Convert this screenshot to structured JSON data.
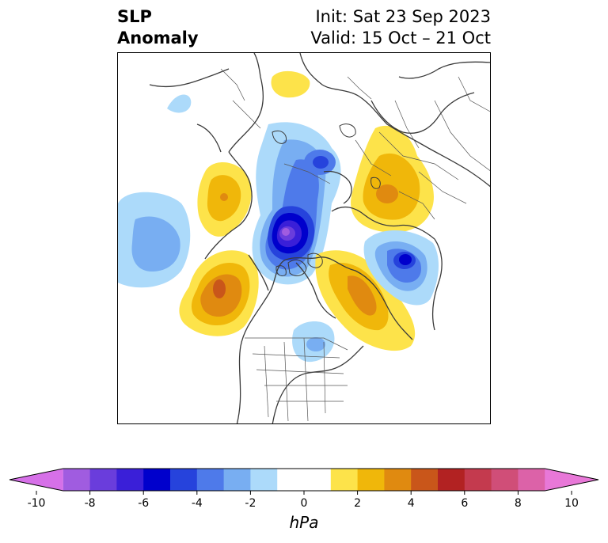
{
  "title": {
    "left_line1": "SLP",
    "left_line2": "Anomaly",
    "init": "Init: Sat 23 Sep 2023",
    "valid": "Valid: 15 Oct – 21 Oct"
  },
  "colorbar": {
    "units": "hPa",
    "tick_labels": [
      "-10",
      "-8",
      "-6",
      "-4",
      "-2",
      "0",
      "2",
      "4",
      "6",
      "8",
      "10"
    ],
    "bins": [
      {
        "from": -10,
        "to": -9,
        "color": "#d670e8"
      },
      {
        "from": -9,
        "to": -8,
        "color": "#a05ce0"
      },
      {
        "from": -8,
        "to": -7,
        "color": "#6a3ddc"
      },
      {
        "from": -7,
        "to": -6,
        "color": "#3a1fd8"
      },
      {
        "from": -6,
        "to": -5,
        "color": "#0000cc"
      },
      {
        "from": -5,
        "to": -4,
        "color": "#2643dc"
      },
      {
        "from": -4,
        "to": -3,
        "color": "#4e7aea"
      },
      {
        "from": -3,
        "to": -2,
        "color": "#78aef2"
      },
      {
        "from": -2,
        "to": -1,
        "color": "#acdafa"
      },
      {
        "from": -1,
        "to": 1,
        "color": "#ffffff"
      },
      {
        "from": 1,
        "to": 2,
        "color": "#fde34a"
      },
      {
        "from": 2,
        "to": 3,
        "color": "#f0b70a"
      },
      {
        "from": 3,
        "to": 4,
        "color": "#e08a10"
      },
      {
        "from": 4,
        "to": 5,
        "color": "#c9561a"
      },
      {
        "from": 5,
        "to": 6,
        "color": "#b22222"
      },
      {
        "from": 6,
        "to": 7,
        "color": "#c43a4e"
      },
      {
        "from": 7,
        "to": 8,
        "color": "#d04e78"
      },
      {
        "from": 8,
        "to": 9,
        "color": "#dc62a8"
      },
      {
        "from": 9,
        "to": 10,
        "color": "#e878d8"
      }
    ],
    "extend": "both"
  }
}
